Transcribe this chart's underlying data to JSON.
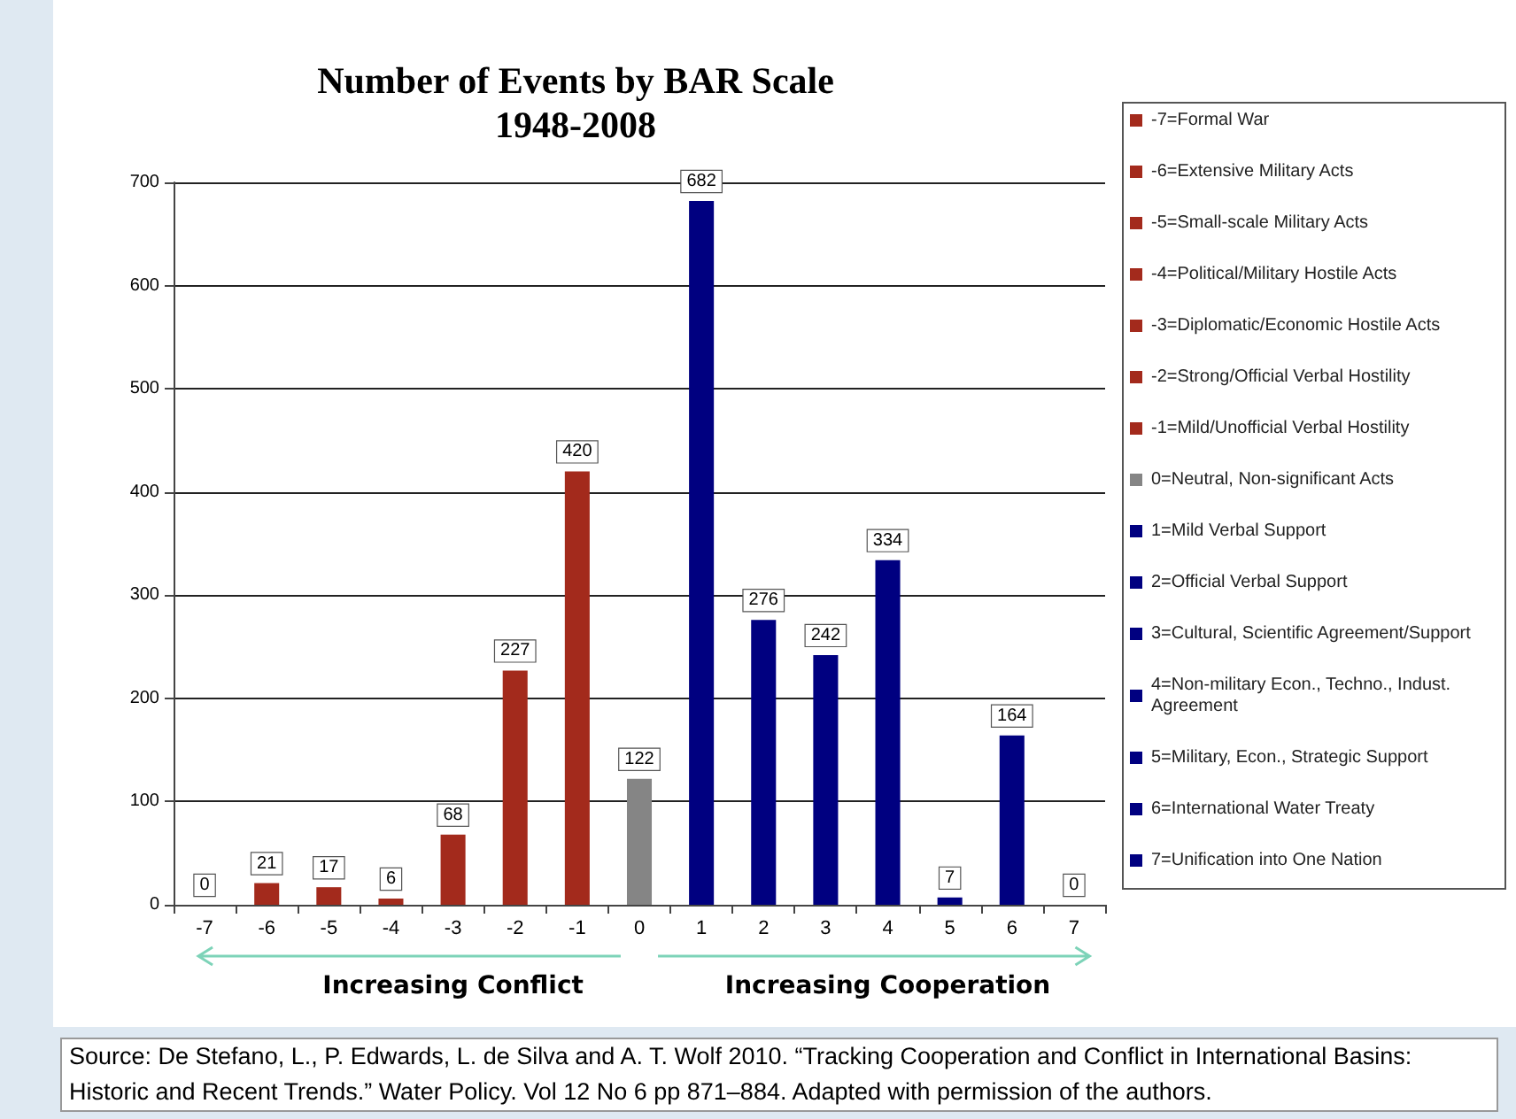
{
  "chart_data": {
    "type": "bar",
    "title": "Number of Events by BAR Scale",
    "subtitle": "1948-2008",
    "categories": [
      "-7",
      "-6",
      "-5",
      "-4",
      "-3",
      "-2",
      "-1",
      "0",
      "1",
      "2",
      "3",
      "4",
      "5",
      "6",
      "7"
    ],
    "series": [
      {
        "name": "-7=Formal War",
        "color": "#a32a1c",
        "values": [
          0,
          null,
          null,
          null,
          null,
          null,
          null,
          null,
          null,
          null,
          null,
          null,
          null,
          null,
          null
        ]
      },
      {
        "name": "-6=Extensive Military Acts",
        "color": "#a32a1c",
        "values": [
          null,
          21,
          null,
          null,
          null,
          null,
          null,
          null,
          null,
          null,
          null,
          null,
          null,
          null,
          null
        ]
      },
      {
        "name": "-5=Small-scale Military Acts",
        "color": "#a32a1c",
        "values": [
          null,
          null,
          17,
          null,
          null,
          null,
          null,
          null,
          null,
          null,
          null,
          null,
          null,
          null,
          null
        ]
      },
      {
        "name": "-4=Political/Military Hostile Acts",
        "color": "#a32a1c",
        "values": [
          null,
          null,
          null,
          6,
          null,
          null,
          null,
          null,
          null,
          null,
          null,
          null,
          null,
          null,
          null
        ]
      },
      {
        "name": "-3=Diplomatic/Economic Hostile Acts",
        "color": "#a32a1c",
        "values": [
          null,
          null,
          null,
          null,
          68,
          null,
          null,
          null,
          null,
          null,
          null,
          null,
          null,
          null,
          null
        ]
      },
      {
        "name": "-2=Strong/Official Verbal Hostility",
        "color": "#a32a1c",
        "values": [
          null,
          null,
          null,
          null,
          null,
          227,
          null,
          null,
          null,
          null,
          null,
          null,
          null,
          null,
          null
        ]
      },
      {
        "name": "-1=Mild/Unofficial Verbal Hostility",
        "color": "#a32a1c",
        "values": [
          null,
          null,
          null,
          null,
          null,
          null,
          420,
          null,
          null,
          null,
          null,
          null,
          null,
          null,
          null
        ]
      },
      {
        "name": "0=Neutral, Non-significant Acts",
        "color": "#858585",
        "values": [
          null,
          null,
          null,
          null,
          null,
          null,
          null,
          122,
          null,
          null,
          null,
          null,
          null,
          null,
          null
        ]
      },
      {
        "name": "1=Mild Verbal Support",
        "color": "#000080",
        "values": [
          null,
          null,
          null,
          null,
          null,
          null,
          null,
          null,
          682,
          null,
          null,
          null,
          null,
          null,
          null
        ]
      },
      {
        "name": "2=Official Verbal Support",
        "color": "#000080",
        "values": [
          null,
          null,
          null,
          null,
          null,
          null,
          null,
          null,
          null,
          276,
          null,
          null,
          null,
          null,
          null
        ]
      },
      {
        "name": "3=Cultural, Scientific Agreement/Support",
        "color": "#000080",
        "values": [
          null,
          null,
          null,
          null,
          null,
          null,
          null,
          null,
          null,
          null,
          242,
          null,
          null,
          null,
          null
        ]
      },
      {
        "name": "4=Non-military Econ., Techno., Indust. Agreement",
        "color": "#000080",
        "values": [
          null,
          null,
          null,
          null,
          null,
          null,
          null,
          null,
          null,
          null,
          null,
          334,
          null,
          null,
          null
        ]
      },
      {
        "name": "5=Military, Econ., Strategic Support",
        "color": "#000080",
        "values": [
          null,
          null,
          null,
          null,
          null,
          null,
          null,
          null,
          null,
          null,
          null,
          null,
          7,
          null,
          null
        ]
      },
      {
        "name": "6=International Water Treaty",
        "color": "#000080",
        "values": [
          null,
          null,
          null,
          null,
          null,
          null,
          null,
          null,
          null,
          null,
          null,
          null,
          null,
          164,
          null
        ]
      },
      {
        "name": "7=Unification into One Nation",
        "color": "#000080",
        "values": [
          null,
          null,
          null,
          null,
          null,
          null,
          null,
          null,
          null,
          null,
          null,
          null,
          null,
          null,
          0
        ]
      }
    ],
    "ylim": [
      0,
      700
    ],
    "yticks": [
      0,
      100,
      200,
      300,
      400,
      500,
      600,
      700
    ],
    "grid": "y",
    "legend": "right",
    "data_labels": true,
    "annotations": [
      "Increasing Conflict",
      "Increasing Cooperation",
      "Source: De Stefano, L., P. Edwards, L. de Silva and A. T. Wolf  2010. “Tracking Cooperation and Conflict in International Basins: Historic and Recent Trends.” Water Policy. Vol 12 No 6 pp 871–884. Adapted with permission of the authors."
    ]
  }
}
